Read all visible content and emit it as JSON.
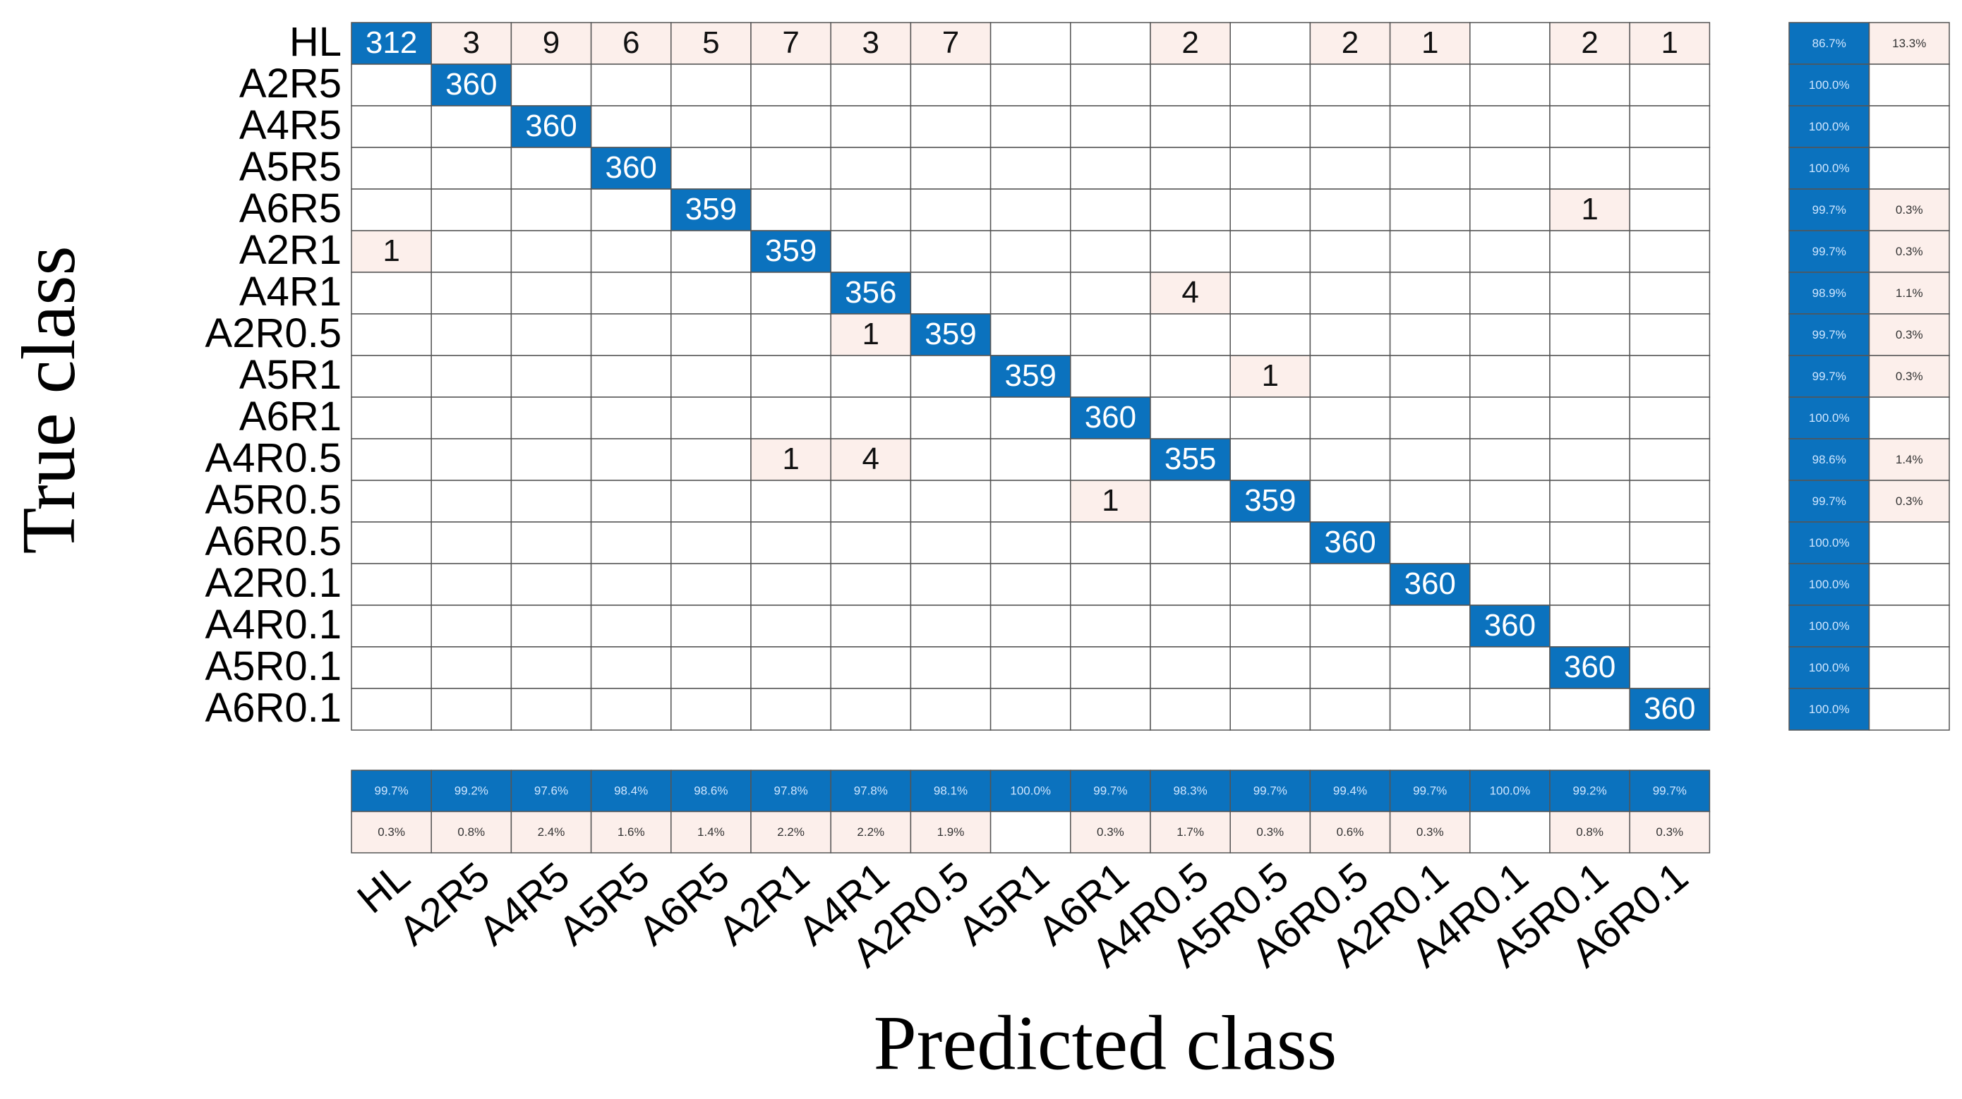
{
  "chart_data": {
    "type": "confusion_matrix",
    "x_label": "Predicted class",
    "y_label": "True class",
    "classes": [
      "HL",
      "A2R5",
      "A4R5",
      "A5R5",
      "A6R5",
      "A2R1",
      "A4R1",
      "A2R0.5",
      "A5R1",
      "A6R1",
      "A4R0.5",
      "A5R0.5",
      "A6R0.5",
      "A2R0.1",
      "A4R0.1",
      "A5R0.1",
      "A6R0.1"
    ],
    "matrix": [
      [
        312,
        3,
        9,
        6,
        5,
        7,
        3,
        7,
        null,
        null,
        2,
        null,
        2,
        1,
        null,
        2,
        1
      ],
      [
        null,
        360,
        null,
        null,
        null,
        null,
        null,
        null,
        null,
        null,
        null,
        null,
        null,
        null,
        null,
        null,
        null
      ],
      [
        null,
        null,
        360,
        null,
        null,
        null,
        null,
        null,
        null,
        null,
        null,
        null,
        null,
        null,
        null,
        null,
        null
      ],
      [
        null,
        null,
        null,
        360,
        null,
        null,
        null,
        null,
        null,
        null,
        null,
        null,
        null,
        null,
        null,
        null,
        null
      ],
      [
        null,
        null,
        null,
        null,
        359,
        null,
        null,
        null,
        null,
        null,
        null,
        null,
        null,
        null,
        null,
        1,
        null
      ],
      [
        1,
        null,
        null,
        null,
        null,
        359,
        null,
        null,
        null,
        null,
        null,
        null,
        null,
        null,
        null,
        null,
        null
      ],
      [
        null,
        null,
        null,
        null,
        null,
        null,
        356,
        null,
        null,
        null,
        4,
        null,
        null,
        null,
        null,
        null,
        null
      ],
      [
        null,
        null,
        null,
        null,
        null,
        null,
        1,
        359,
        null,
        null,
        null,
        null,
        null,
        null,
        null,
        null,
        null
      ],
      [
        null,
        null,
        null,
        null,
        null,
        null,
        null,
        null,
        359,
        null,
        null,
        1,
        null,
        null,
        null,
        null,
        null
      ],
      [
        null,
        null,
        null,
        null,
        null,
        null,
        null,
        null,
        null,
        360,
        null,
        null,
        null,
        null,
        null,
        null,
        null
      ],
      [
        null,
        null,
        null,
        null,
        null,
        1,
        4,
        null,
        null,
        null,
        355,
        null,
        null,
        null,
        null,
        null,
        null
      ],
      [
        null,
        null,
        null,
        null,
        null,
        null,
        null,
        null,
        null,
        1,
        null,
        359,
        null,
        null,
        null,
        null,
        null
      ],
      [
        null,
        null,
        null,
        null,
        null,
        null,
        null,
        null,
        null,
        null,
        null,
        null,
        360,
        null,
        null,
        null,
        null
      ],
      [
        null,
        null,
        null,
        null,
        null,
        null,
        null,
        null,
        null,
        null,
        null,
        null,
        null,
        360,
        null,
        null,
        null
      ],
      [
        null,
        null,
        null,
        null,
        null,
        null,
        null,
        null,
        null,
        null,
        null,
        null,
        null,
        null,
        360,
        null,
        null
      ],
      [
        null,
        null,
        null,
        null,
        null,
        null,
        null,
        null,
        null,
        null,
        null,
        null,
        null,
        null,
        null,
        360,
        null
      ],
      [
        null,
        null,
        null,
        null,
        null,
        null,
        null,
        null,
        null,
        null,
        null,
        null,
        null,
        null,
        null,
        null,
        360
      ]
    ],
    "row_summary": {
      "correct": {
        "values": [
          86.7,
          100,
          100,
          100,
          99.7,
          99.7,
          98.9,
          99.7,
          99.7,
          100,
          98.6,
          99.7,
          100,
          100,
          100,
          100,
          100
        ],
        "value_labels": [
          "86.7%",
          "100.0%",
          "100.0%",
          "100.0%",
          "99.7%",
          "99.7%",
          "98.9%",
          "99.7%",
          "99.7%",
          "100.0%",
          "98.6%",
          "99.7%",
          "100.0%",
          "100.0%",
          "100.0%",
          "100.0%",
          "100.0%"
        ]
      },
      "incorrect": {
        "values": [
          13.3,
          null,
          null,
          null,
          0.3,
          0.3,
          1.1,
          0.3,
          0.3,
          null,
          1.4,
          0.3,
          null,
          null,
          null,
          null,
          null
        ],
        "value_labels": [
          "13.3%",
          null,
          null,
          null,
          "0.3%",
          "0.3%",
          "1.1%",
          "0.3%",
          "0.3%",
          null,
          "1.4%",
          "0.3%",
          null,
          null,
          null,
          null,
          null
        ]
      }
    },
    "column_summary": {
      "correct": {
        "values": [
          99.7,
          99.2,
          97.6,
          98.4,
          98.6,
          97.8,
          97.8,
          98.1,
          100,
          99.7,
          98.3,
          99.7,
          99.4,
          99.7,
          100,
          99.2,
          99.7
        ],
        "value_labels": [
          "99.7%",
          "99.2%",
          "97.6%",
          "98.4%",
          "98.6%",
          "97.8%",
          "97.8%",
          "98.1%",
          "100.0%",
          "99.7%",
          "98.3%",
          "99.7%",
          "99.4%",
          "99.7%",
          "100.0%",
          "99.2%",
          "99.7%"
        ]
      },
      "incorrect": {
        "values": [
          0.3,
          0.8,
          2.4,
          1.6,
          1.4,
          2.2,
          2.2,
          1.9,
          null,
          0.3,
          1.7,
          0.3,
          0.6,
          0.3,
          null,
          0.8,
          0.3
        ],
        "value_labels": [
          "0.3%",
          "0.8%",
          "2.4%",
          "1.6%",
          "1.4%",
          "2.2%",
          "2.2%",
          "1.9%",
          null,
          "0.3%",
          "1.7%",
          "0.3%",
          "0.6%",
          "0.3%",
          null,
          "0.8%",
          "0.3%"
        ]
      }
    },
    "correct_color": "#0b72be",
    "incorrect_color": "#fcefeb"
  }
}
